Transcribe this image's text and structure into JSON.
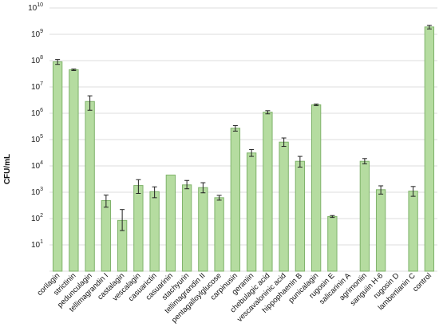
{
  "chart_data": {
    "type": "bar",
    "title": "",
    "xlabel": "",
    "ylabel": "CFU/mL",
    "y_scale": "log",
    "ylim": [
      1,
      10000000000
    ],
    "y_ticks": [
      {
        "base": "10",
        "exp": "1",
        "value": 10
      },
      {
        "base": "10",
        "exp": "2",
        "value": 100
      },
      {
        "base": "10",
        "exp": "3",
        "value": 1000
      },
      {
        "base": "10",
        "exp": "4",
        "value": 10000
      },
      {
        "base": "10",
        "exp": "5",
        "value": 100000
      },
      {
        "base": "10",
        "exp": "6",
        "value": 1000000
      },
      {
        "base": "10",
        "exp": "7",
        "value": 10000000
      },
      {
        "base": "10",
        "exp": "8",
        "value": 100000000
      },
      {
        "base": "10",
        "exp": "9",
        "value": 1000000000
      },
      {
        "base": "10",
        "exp": "10",
        "value": 10000000000
      }
    ],
    "grid": true,
    "legend": "none",
    "colors": {
      "bar_fill": "#b5dca0",
      "bar_stroke": "#7fb36a",
      "grid": "#dcdcdc",
      "error_bar": "#222222"
    },
    "categories": [
      "corilagin",
      "strictinin",
      "pedunculagin",
      "tellimagrandin I",
      "castalagin",
      "vescalagin",
      "casuarictin",
      "casuarinin",
      "stachyurin",
      "tellimagrandin II",
      "pentagalloylglucose",
      "carpinusin",
      "geraniin",
      "chebulagic acid",
      "vescavaloninic acid",
      "hippophaenin B",
      "punicalagin",
      "rugosin E",
      "salicarinin A",
      "agrimoniin",
      "sanguiin H-6",
      "rugosin D",
      "lambertianin C",
      "control"
    ],
    "values": [
      90000000,
      45000000,
      2800000,
      480,
      85,
      1800,
      1050,
      4500,
      1900,
      1500,
      620,
      270000,
      31000,
      1100000,
      80000,
      15000,
      2100000,
      120,
      null,
      15000,
      1250,
      null,
      1100,
      1900000000
    ],
    "error_low": [
      72000000,
      42000000,
      1300000,
      270,
      35,
      900,
      620,
      null,
      1350,
      950,
      500,
      210000,
      23000,
      950000,
      55000,
      9000,
      1950000,
      110,
      null,
      12000,
      850,
      null,
      700,
      1600000000
    ],
    "error_high": [
      110000000,
      48000000,
      4600000,
      780,
      220,
      3000,
      1600,
      null,
      2800,
      2300,
      760,
      340000,
      42000,
      1250000,
      115000,
      23000,
      2250000,
      130,
      null,
      19000,
      1750,
      null,
      1650,
      2200000000
    ]
  }
}
